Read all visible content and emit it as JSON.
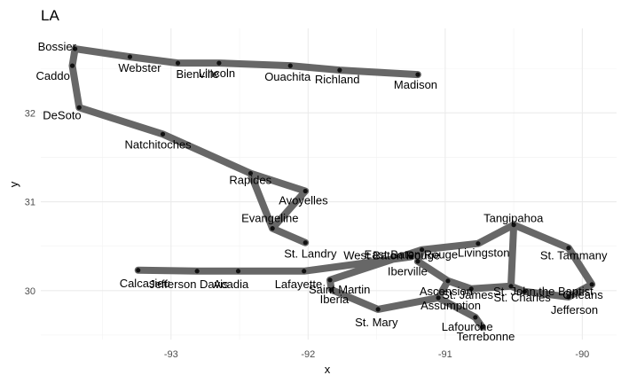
{
  "chart_data": {
    "type": "line",
    "title": "LA",
    "xlabel": "x",
    "ylabel": "y",
    "xlim": [
      -93.95,
      -89.75
    ],
    "ylim": [
      29.45,
      32.95
    ],
    "xticks": [
      -93,
      -92,
      -91,
      -90
    ],
    "yticks": [
      30,
      31,
      32
    ],
    "tick_labels_x": [
      "-93",
      "-92",
      "-91",
      "-90"
    ],
    "tick_labels_y": [
      "30",
      "31",
      "32"
    ],
    "grid": true,
    "path_color": "#5f5f5f",
    "point_color": "#111111",
    "points": [
      {
        "name": "Madison",
        "x": -91.2,
        "y": 32.43
      },
      {
        "name": "Richland",
        "x": -91.77,
        "y": 32.48
      },
      {
        "name": "Ouachita",
        "x": -92.13,
        "y": 32.53
      },
      {
        "name": "Lincoln",
        "x": -92.65,
        "y": 32.56
      },
      {
        "name": "Bienville",
        "x": -92.95,
        "y": 32.56
      },
      {
        "name": "Webster",
        "x": -93.3,
        "y": 32.63
      },
      {
        "name": "Bossier",
        "x": -93.7,
        "y": 32.72
      },
      {
        "name": "Caddo",
        "x": -93.72,
        "y": 32.53
      },
      {
        "name": "DeSoto",
        "x": -93.67,
        "y": 32.06
      },
      {
        "name": "Natchitoches",
        "x": -93.06,
        "y": 31.76
      },
      {
        "name": "Rapides",
        "x": -92.42,
        "y": 31.32
      },
      {
        "name": "Avoyelles",
        "x": -92.02,
        "y": 31.12
      },
      {
        "name": "Evangeline",
        "x": -92.26,
        "y": 30.7
      },
      {
        "name": "St. Landry",
        "x": -92.02,
        "y": 30.54
      },
      {
        "name": "Calcasieu",
        "x": -93.24,
        "y": 30.23
      },
      {
        "name": "Jefferson Davis",
        "x": -92.81,
        "y": 30.22
      },
      {
        "name": "Acadia",
        "x": -92.51,
        "y": 30.22
      },
      {
        "name": "Lafayette",
        "x": -92.03,
        "y": 30.22
      },
      {
        "name": "Saint Martin",
        "x": -91.84,
        "y": 30.12
      },
      {
        "name": "Iberia",
        "x": -91.83,
        "y": 30.01
      },
      {
        "name": "St. Mary",
        "x": -91.49,
        "y": 29.79
      },
      {
        "name": "Assumption",
        "x": -91.05,
        "y": 29.92
      },
      {
        "name": "Lafourche",
        "x": -90.78,
        "y": 29.7
      },
      {
        "name": "Terrebonne",
        "x": -90.73,
        "y": 29.59
      },
      {
        "name": "St. James",
        "x": -90.81,
        "y": 30.02
      },
      {
        "name": "St. John the Baptist",
        "x": -90.52,
        "y": 30.05
      },
      {
        "name": "St. Charles",
        "x": -90.42,
        "y": 29.99
      },
      {
        "name": "Jefferson",
        "x": -90.1,
        "y": 29.93
      },
      {
        "name": "Orleans",
        "x": -89.93,
        "y": 30.07
      },
      {
        "name": "St. Tammany",
        "x": -90.1,
        "y": 30.48
      },
      {
        "name": "Tangipahoa",
        "x": -90.5,
        "y": 30.74
      },
      {
        "name": "Livingston",
        "x": -90.76,
        "y": 30.53
      },
      {
        "name": "East Baton Rouge",
        "x": -91.17,
        "y": 30.46
      },
      {
        "name": "Iberville",
        "x": -91.2,
        "y": 30.33
      },
      {
        "name": "Ascension",
        "x": -90.98,
        "y": 30.11
      },
      {
        "name": "West Baton Rouge",
        "x": -91.25,
        "y": 30.38
      }
    ],
    "path_order": [
      "Madison",
      "Richland",
      "Ouachita",
      "Lincoln",
      "Bienville",
      "Webster",
      "Bossier",
      "Caddo",
      "DeSoto",
      "Natchitoches",
      "Rapides",
      "Avoyelles",
      "Evangeline",
      "Rapides",
      "Evangeline",
      "St. Landry"
    ],
    "path_order_2": [
      "Calcasieu",
      "Jefferson Davis",
      "Acadia",
      "Lafayette",
      "West Baton Rouge",
      "East Baton Rouge",
      "Livingston",
      "Tangipahoa",
      "St. Tammany",
      "Orleans",
      "Jefferson",
      "St. Charles",
      "St. John the Baptist",
      "Tangipahoa",
      "St. John the Baptist",
      "St. James",
      "Ascension",
      "Iberville",
      "East Baton Rouge",
      "Saint Martin",
      "Iberia",
      "St. Mary",
      "Assumption",
      "Lafourche",
      "Terrebonne",
      "Lafourche",
      "Assumption",
      "Ascension"
    ]
  }
}
